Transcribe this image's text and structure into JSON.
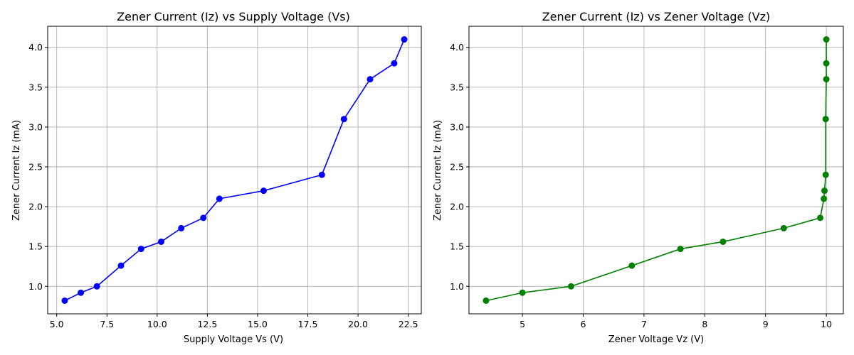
{
  "chart_data": [
    {
      "type": "line",
      "title": "Zener Current (Iz) vs Supply Voltage (Vs)",
      "xlabel": "Supply Voltage Vs (V)",
      "ylabel": "Zener Current Iz (mA)",
      "xlim": [
        4.55,
        23.15
      ],
      "ylim": [
        0.655,
        4.265
      ],
      "xticks": [
        5.0,
        7.5,
        10.0,
        12.5,
        15.0,
        17.5,
        20.0,
        22.5
      ],
      "xtick_labels": [
        "5.0",
        "7.5",
        "10.0",
        "12.5",
        "15.0",
        "17.5",
        "20.0",
        "22.5"
      ],
      "yticks": [
        1.0,
        1.5,
        2.0,
        2.5,
        3.0,
        3.5,
        4.0
      ],
      "ytick_labels": [
        "1.0",
        "1.5",
        "2.0",
        "2.5",
        "3.0",
        "3.5",
        "4.0"
      ],
      "grid": true,
      "series": [
        {
          "color": "#0000ff",
          "marker": "circle",
          "x": [
            5.4,
            6.2,
            7.0,
            8.2,
            9.2,
            10.2,
            11.2,
            12.3,
            13.1,
            15.3,
            18.2,
            19.3,
            20.6,
            21.8,
            22.3
          ],
          "y": [
            0.82,
            0.92,
            1.0,
            1.26,
            1.47,
            1.56,
            1.73,
            1.86,
            2.1,
            2.2,
            2.4,
            3.1,
            3.6,
            3.8,
            4.1
          ]
        }
      ]
    },
    {
      "type": "line",
      "title": "Zener Current (Iz) vs Zener Voltage (Vz)",
      "xlabel": "Zener Voltage Vz (V)",
      "ylabel": "Zener Current Iz (mA)",
      "xlim": [
        4.12,
        10.28
      ],
      "ylim": [
        0.655,
        4.265
      ],
      "xticks": [
        5,
        6,
        7,
        8,
        9,
        10
      ],
      "xtick_labels": [
        "5",
        "6",
        "7",
        "8",
        "9",
        "10"
      ],
      "yticks": [
        1.0,
        1.5,
        2.0,
        2.5,
        3.0,
        3.5,
        4.0
      ],
      "ytick_labels": [
        "1.0",
        "1.5",
        "2.0",
        "2.5",
        "3.0",
        "3.5",
        "4.0"
      ],
      "grid": true,
      "series": [
        {
          "color": "#008000",
          "marker": "circle",
          "x": [
            4.4,
            5.0,
            5.8,
            6.8,
            7.6,
            8.3,
            9.3,
            9.9,
            9.96,
            9.97,
            9.99,
            9.99,
            10.0,
            10.0,
            10.0
          ],
          "y": [
            0.82,
            0.92,
            1.0,
            1.26,
            1.47,
            1.56,
            1.73,
            1.86,
            2.1,
            2.2,
            2.4,
            3.1,
            3.6,
            3.8,
            4.1
          ]
        }
      ]
    }
  ]
}
